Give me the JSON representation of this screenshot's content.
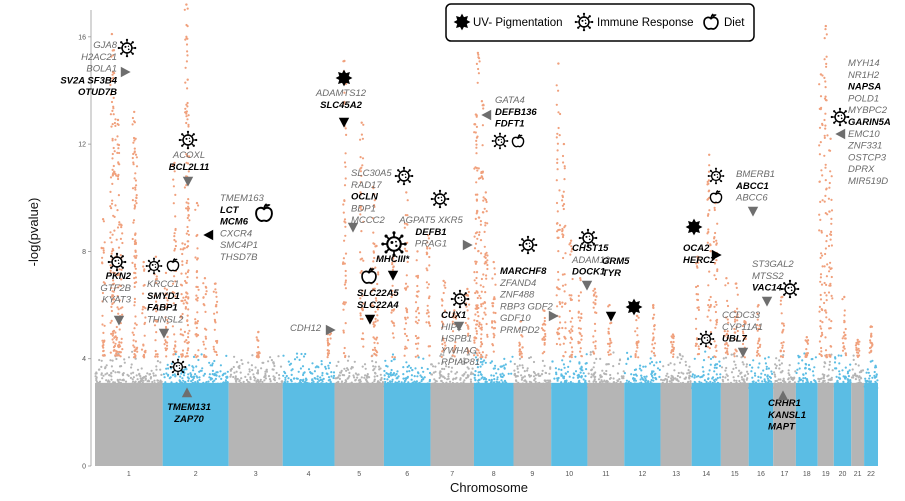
{
  "chart_data": {
    "type": "scatter",
    "subtype": "manhattan",
    "xlabel": "Chromosome",
    "ylabel": "-log(pvalue)",
    "ylim": [
      0,
      17
    ],
    "yticks": [
      0,
      4,
      8,
      12,
      16
    ],
    "chromosomes": [
      "1",
      "2",
      "3",
      "4",
      "5",
      "6",
      "7",
      "8",
      "9",
      "10",
      "11",
      "12",
      "13",
      "14",
      "15",
      "16",
      "17",
      "18",
      "19",
      "20",
      "21",
      "22"
    ],
    "colors": {
      "odd": "#b5b5b5",
      "even": "#5bbde4",
      "significant": "#f0a07c",
      "marker": "#6e6e6e",
      "dark": "#000000"
    },
    "legend": [
      {
        "name": "UV- Pigmentation",
        "icon": "sun-icon"
      },
      {
        "name": "Immune Response",
        "icon": "virus-icon"
      },
      {
        "name": "Diet",
        "icon": "apple-icon"
      }
    ],
    "loci": [
      {
        "id": "l1",
        "chr": "1",
        "pos": 0.25,
        "y": 16.1,
        "genes": [
          [
            "GJA8",
            0
          ],
          [
            "H2AC21",
            0
          ],
          [
            "BOLA1",
            0
          ],
          [
            "SV2A SF3B4",
            1
          ],
          [
            "OTUD7B",
            1
          ]
        ],
        "icons": [
          "virus-icon"
        ],
        "marker": "right"
      },
      {
        "id": "l2",
        "chr": "1",
        "pos": 0.4,
        "y": 7.8,
        "genes": [
          [
            "PKN2",
            1
          ],
          [
            "GTF2B",
            0
          ],
          [
            "KYAT3",
            0
          ]
        ],
        "icons": [
          "virus-icon"
        ],
        "marker": "down"
      },
      {
        "id": "l3",
        "chr": "1",
        "pos": 0.8,
        "y": 7.5,
        "genes": [
          [
            "KRCC1",
            0
          ],
          [
            "SMYD1",
            1
          ],
          [
            "FABP1",
            1
          ],
          [
            "THNSL2",
            0
          ]
        ],
        "icons": [
          "virus-icon",
          "apple-icon"
        ],
        "marker": "down"
      },
      {
        "id": "l4",
        "chr": "2",
        "pos": 0.2,
        "y": 12.5,
        "genes": [
          [
            "ACOXL",
            0
          ],
          [
            "BCL2L11",
            1
          ]
        ],
        "icons": [
          "virus-icon"
        ],
        "marker": "down"
      },
      {
        "id": "l5",
        "chr": "2",
        "pos": 0.6,
        "y": 9.8,
        "genes": [
          [
            "TMEM163",
            0
          ],
          [
            "LCT",
            1
          ],
          [
            "MCM6",
            1
          ],
          [
            "CXCR4",
            0
          ],
          [
            "SMC4P1",
            0
          ],
          [
            "THSD7B",
            0
          ]
        ],
        "icons": [
          "apple-icon"
        ],
        "marker": "left"
      },
      {
        "id": "l6",
        "chr": "2",
        "pos": 0.35,
        "y": 3.3,
        "genes": [
          [
            "TMEM131",
            1
          ],
          [
            "ZAP70",
            1
          ]
        ],
        "icons": [
          "virus-icon"
        ],
        "marker": "up"
      },
      {
        "id": "l7",
        "chr": "4",
        "pos": 0.9,
        "y": 5.0,
        "genes": [
          [
            "CDH12",
            0
          ]
        ],
        "icons": [],
        "marker": "right"
      },
      {
        "id": "l8",
        "chr": "5",
        "pos": 0.2,
        "y": 15.1,
        "genes": [
          [
            "ADAMTS12",
            0
          ],
          [
            "SLC45A2",
            1
          ]
        ],
        "icons": [
          "sun-icon"
        ],
        "marker": "down"
      },
      {
        "id": "l9",
        "chr": "5",
        "pos": 0.6,
        "y": 11.3,
        "genes": [
          [
            "SLC30A5",
            0
          ],
          [
            "RAD17",
            0
          ],
          [
            "OCLN",
            1
          ],
          [
            "BDP1",
            0
          ],
          [
            "MCCC2",
            0
          ]
        ],
        "icons": [
          "virus-icon"
        ],
        "marker": "down"
      },
      {
        "id": "l10",
        "chr": "5",
        "pos": 0.7,
        "y": 7.3,
        "genes": [
          [
            "SLC22A5",
            1
          ],
          [
            "SLC22A4",
            1
          ]
        ],
        "icons": [
          "apple-icon"
        ],
        "marker": "down"
      },
      {
        "id": "l11",
        "chr": "6",
        "pos": 0.5,
        "y": 8.8,
        "genes": [
          [
            "MHCIII*",
            1
          ]
        ],
        "icons": [
          "virus-icon"
        ],
        "marker": "down"
      },
      {
        "id": "l12",
        "chr": "6",
        "pos": 0.8,
        "y": 10.3,
        "genes": [
          [
            "AGPAT5 XKR5",
            0
          ],
          [
            "DEFB1",
            1
          ],
          [
            "PRAG1",
            0
          ]
        ],
        "icons": [
          "virus-icon"
        ],
        "marker": "right"
      },
      {
        "id": "l13",
        "chr": "7",
        "pos": 0.4,
        "y": 6.3,
        "genes": [
          [
            "CUX1",
            1
          ],
          [
            "HIP1",
            0
          ],
          [
            "HSPB1",
            0
          ],
          [
            "YWHAG",
            0
          ],
          [
            "RPIAP81",
            0
          ]
        ],
        "icons": [
          "virus-icon"
        ],
        "marker": "down"
      },
      {
        "id": "l14",
        "chr": "8",
        "pos": 0.2,
        "y": 13.5,
        "genes": [
          [
            "GATA4",
            0
          ],
          [
            "DEFB136",
            1
          ],
          [
            "FDFT1",
            1
          ]
        ],
        "icons": [
          "virus-icon",
          "apple-icon"
        ],
        "marker": "left"
      },
      {
        "id": "l15",
        "chr": "9",
        "pos": 0.1,
        "y": 8.5,
        "genes": [
          [
            "MARCHF8",
            1
          ],
          [
            "ZFAND4",
            0
          ],
          [
            "ZNF488",
            0
          ],
          [
            "RBP3 GDF2",
            0
          ],
          [
            "GDF10",
            0
          ],
          [
            "PRMPD2",
            0
          ]
        ],
        "icons": [
          "virus-icon"
        ],
        "marker": "right"
      },
      {
        "id": "l16",
        "chr": "10",
        "pos": 0.6,
        "y": 8.7,
        "genes": [
          [
            "CHST15",
            1
          ],
          [
            "ADAM12",
            0
          ],
          [
            "DOCK1",
            1
          ]
        ],
        "icons": [
          "virus-icon"
        ],
        "marker": "down"
      },
      {
        "id": "l17",
        "chr": "11",
        "pos": 0.5,
        "y": 6.2,
        "genes": [
          [
            "GRM5",
            1
          ],
          [
            "TYR",
            1
          ]
        ],
        "icons": [
          "sun-icon"
        ],
        "marker": "down"
      },
      {
        "id": "l18",
        "chr": "14",
        "pos": 0.6,
        "y": 9.2,
        "genes": [
          [
            "OCA2",
            1
          ],
          [
            "HERC2",
            1
          ]
        ],
        "icons": [
          "sun-icon"
        ],
        "marker": "right"
      },
      {
        "id": "l19",
        "chr": "14",
        "pos": 0.8,
        "y": 11.2,
        "genes": [
          [
            "BMERB1",
            0
          ],
          [
            "ABCC1",
            1
          ],
          [
            "ABCC6",
            0
          ]
        ],
        "icons": [
          "virus-icon",
          "apple-icon"
        ],
        "marker": "down"
      },
      {
        "id": "l20",
        "chr": "15",
        "pos": 0.6,
        "y": 6.4,
        "genes": [
          [
            "ST3GAL2",
            0
          ],
          [
            "MTSS2",
            0
          ],
          [
            "VAC14",
            1
          ]
        ],
        "icons": [
          "virus-icon"
        ],
        "marker": "down"
      },
      {
        "id": "l21",
        "chr": "15",
        "pos": 0.1,
        "y": 5.5,
        "genes": [
          [
            "CCDC33",
            0
          ],
          [
            "CYP11A1",
            0
          ],
          [
            "UBL7",
            1
          ]
        ],
        "icons": [
          "virus-icon"
        ],
        "marker": "down"
      },
      {
        "id": "l22",
        "chr": "17",
        "pos": 0.4,
        "y": 3.3,
        "genes": [
          [
            "CRHR1",
            1
          ],
          [
            "KANSL1",
            1
          ],
          [
            "MAPT",
            1
          ]
        ],
        "icons": [],
        "marker": "up"
      },
      {
        "id": "l23",
        "chr": "19",
        "pos": 0.7,
        "y": 14.0,
        "genes": [
          [
            "MYH14",
            0
          ],
          [
            "NR1H2",
            0
          ],
          [
            "NAPSA",
            1
          ],
          [
            "POLD1",
            0
          ],
          [
            "MYBPC2",
            0
          ],
          [
            "GARIN5A",
            1
          ],
          [
            "EMC10",
            0
          ],
          [
            "ZNF331",
            0
          ],
          [
            "OSTCP3",
            0
          ],
          [
            "DPRX",
            0
          ],
          [
            "MIR519D",
            0
          ]
        ],
        "icons": [
          "virus-icon"
        ],
        "marker": "left"
      }
    ]
  }
}
